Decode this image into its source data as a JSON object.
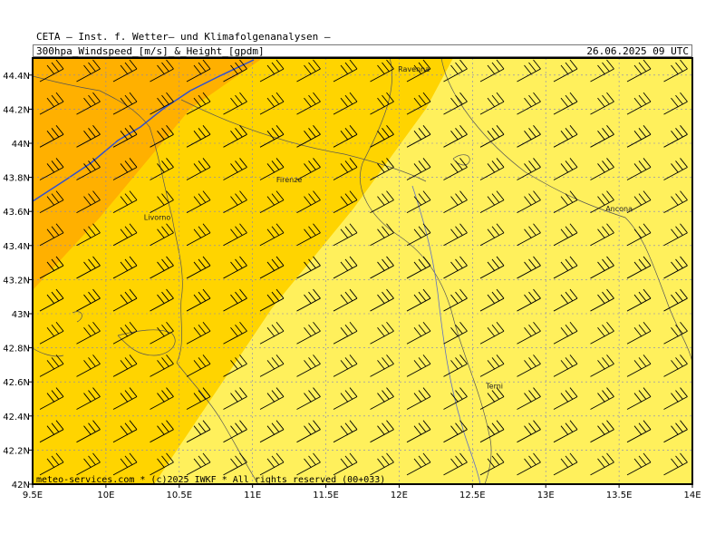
{
  "header": {
    "title_line1": "CETA — Inst. f. Wetter— und Klimafolgenanalysen —",
    "title_line2": "300hpa_Windspeed_[m/s]_&_Height_[gpdm]",
    "run_time": "26.06.2025 09 UTC"
  },
  "map": {
    "lon_range": [
      9.5,
      14.0
    ],
    "lat_range": [
      42.0,
      44.5
    ],
    "x_ticks": [
      "9.5E",
      "10E",
      "10.5E",
      "11E",
      "11.5E",
      "12E",
      "12.5E",
      "13E",
      "13.5E",
      "14E"
    ],
    "y_ticks": [
      "42N",
      "42.2N",
      "42.4N",
      "42.6N",
      "42.8N",
      "43N",
      "43.2N",
      "43.4N",
      "43.6N",
      "43.8N",
      "44N",
      "44.2N",
      "44.4N"
    ],
    "cities": [
      {
        "name": "Ravenna",
        "lon": 12.1,
        "lat": 44.42
      },
      {
        "name": "Firenze",
        "lon": 11.25,
        "lat": 43.77
      },
      {
        "name": "Livorno",
        "lon": 10.35,
        "lat": 43.55
      },
      {
        "name": "Ancona",
        "lon": 13.5,
        "lat": 43.6
      },
      {
        "name": "Terni",
        "lon": 12.65,
        "lat": 42.56
      }
    ],
    "wind_speed_bands": {
      "zone_strong_color": "#ffb000",
      "zone_mid_color": "#ffd400",
      "zone_weak_color": "#fff05c"
    },
    "height_contour_color": "#3050d0",
    "wind_barb_direction": "west-southwest"
  },
  "footer": {
    "credit": "meteo-services.com * (c)2025 IWKF * All rights reserved (00+033)"
  }
}
